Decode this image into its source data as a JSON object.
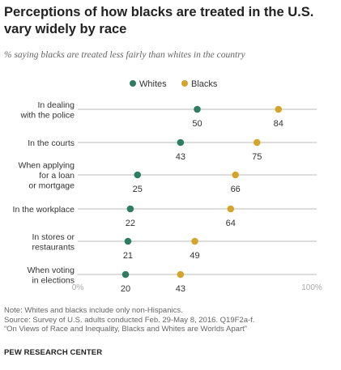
{
  "title": "Perceptions of how blacks are treated in the U.S. vary widely by race",
  "subtitle": "% saying blacks are treated less fairly than whites in the country",
  "chart_data": {
    "type": "dot",
    "categories": [
      [
        "In dealing",
        "with the police"
      ],
      [
        "In the courts"
      ],
      [
        "When applying",
        "for a loan",
        "or mortgage"
      ],
      [
        "In the workplace"
      ],
      [
        "In stores or",
        "restaurants"
      ],
      [
        "When voting",
        "in elections"
      ]
    ],
    "series": [
      {
        "name": "Whites",
        "color": "#2e7d62",
        "values": [
          50,
          43,
          25,
          22,
          21,
          20
        ]
      },
      {
        "name": "Blacks",
        "color": "#d4a52b",
        "values": [
          84,
          75,
          66,
          64,
          49,
          43
        ]
      }
    ],
    "xlim": [
      0,
      100
    ],
    "x_tick_labels": [
      "0%",
      "100%"
    ],
    "legend_position": "top-center"
  },
  "notes": [
    "Note: Whites and blacks include only non-Hispanics.",
    "Source: Survey of U.S. adults conducted Feb. 29-May 8, 2016. Q19F2a-f.",
    "“On Views of Race and Inequality, Blacks and Whites are Worlds Apart”"
  ],
  "organization": "PEW RESEARCH CENTER"
}
